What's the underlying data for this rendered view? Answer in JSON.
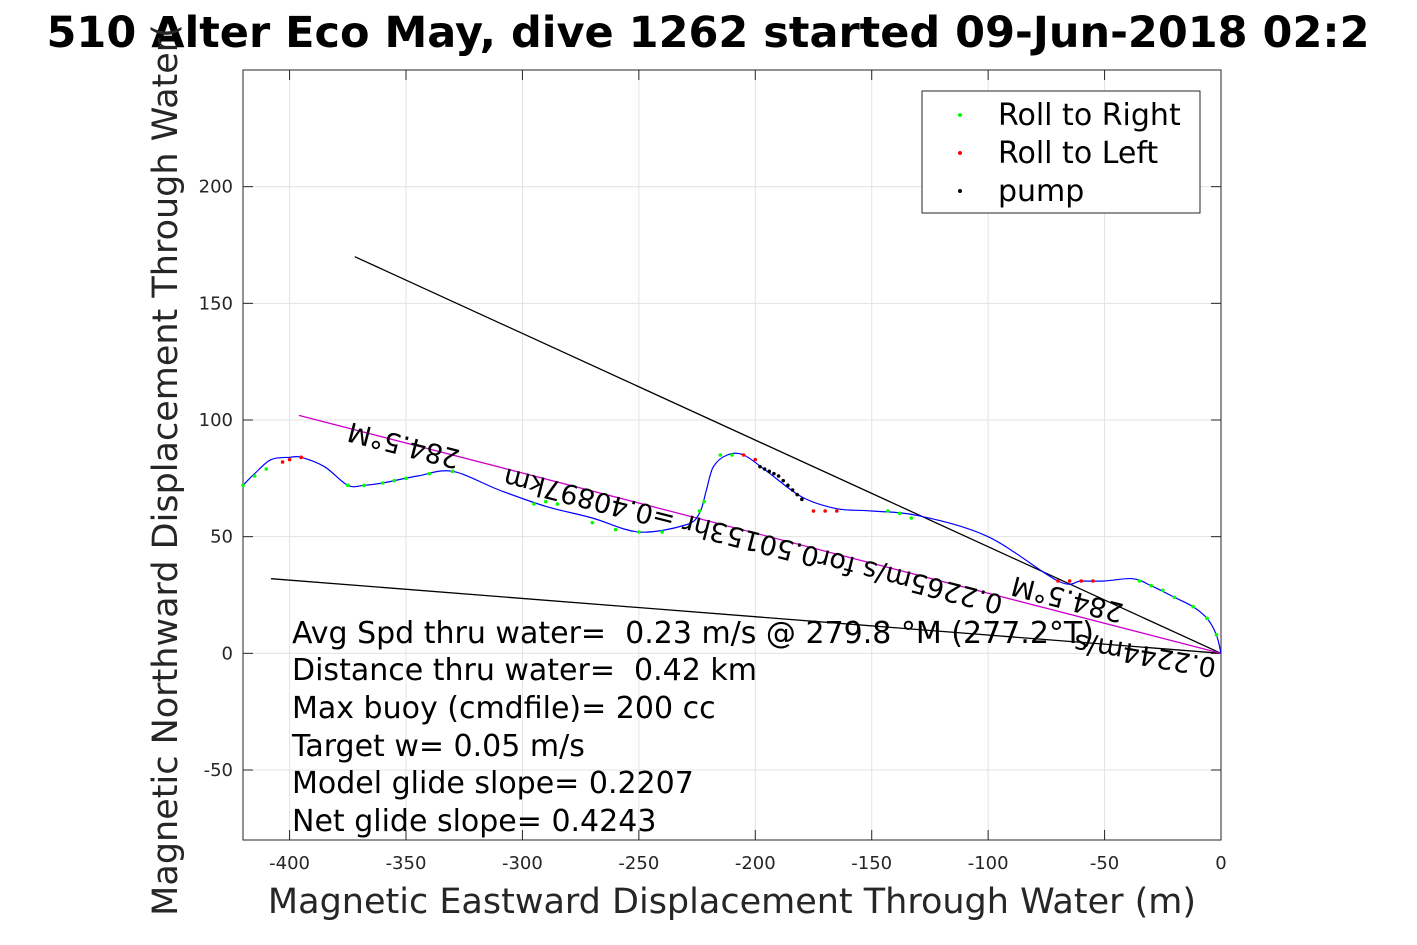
{
  "chart_data": {
    "type": "line",
    "title": "510 Alter Eco May, dive 1262 started 09-Jun-2018 02:2",
    "xlabel": "Magnetic Eastward Displacement Through Water (m)",
    "ylabel": "Magnetic Northward Displacement Through Water(",
    "xlim": [
      -420,
      0
    ],
    "ylim": [
      -80,
      250
    ],
    "xticks": [
      -400,
      -350,
      -300,
      -250,
      -200,
      -150,
      -100,
      -50,
      0
    ],
    "yticks": [
      -50,
      0,
      50,
      100,
      150,
      200
    ],
    "xtick_labels": [
      "-400",
      "-350",
      "-300",
      "-250",
      "-200",
      "-150",
      "-100",
      "-50",
      "0"
    ],
    "ytick_labels": [
      "-50",
      "0",
      "50",
      "100",
      "150",
      "200"
    ],
    "grid": true,
    "legend": {
      "placement": "top-right",
      "entries": [
        {
          "label": "Roll to Right",
          "color": "#00ff00"
        },
        {
          "label": "Roll to Left",
          "color": "#ff0000"
        },
        {
          "label": "pump",
          "color": "#000000"
        }
      ]
    },
    "track": {
      "color": "#0000ff",
      "x": [
        0,
        -2,
        -6,
        -12,
        -20,
        -30,
        -38,
        -50,
        -60,
        -70,
        -100,
        -130,
        -150,
        -165,
        -180,
        -195,
        -205,
        -212,
        -218,
        -221,
        -224,
        -230,
        -250,
        -270,
        -290,
        -310,
        -330,
        -345,
        -360,
        -368,
        -375,
        -385,
        -395,
        -400,
        -408,
        -415,
        -420
      ],
      "y": [
        0,
        8,
        15,
        20,
        24,
        29,
        32,
        31,
        31,
        31,
        50,
        59,
        61,
        62,
        67,
        78,
        85,
        85,
        80,
        70,
        60,
        55,
        52,
        58,
        63,
        70,
        78,
        76,
        73,
        72,
        72,
        80,
        84,
        84,
        83,
        77,
        72
      ]
    },
    "roll_right_points": {
      "color": "#00ff00",
      "x": [
        -2,
        -6,
        -12,
        -20,
        -25,
        -30,
        -35,
        -133,
        -138,
        -143,
        -210,
        -215,
        -222,
        -224,
        -240,
        -250,
        -260,
        -270,
        -285,
        -290,
        -295,
        -330,
        -340,
        -350,
        -355,
        -360,
        -368,
        -375,
        -410,
        -415,
        -420
      ],
      "y": [
        8,
        15,
        20,
        24,
        27,
        29,
        31,
        58,
        60,
        61,
        85,
        85,
        65,
        61,
        52,
        52,
        53,
        56,
        64,
        65,
        64,
        78,
        77,
        75,
        74,
        73,
        72,
        72,
        79,
        76,
        72
      ]
    },
    "roll_left_points": {
      "color": "#ff0000",
      "x": [
        -55,
        -60,
        -65,
        -70,
        -165,
        -170,
        -175,
        -200,
        -205,
        -395,
        -400,
        -403
      ],
      "y": [
        31,
        31,
        31,
        31,
        61,
        61,
        61,
        83,
        85,
        84,
        83,
        82
      ]
    },
    "pump_points": {
      "color": "#000000",
      "x": [
        -180,
        -182,
        -184,
        -186,
        -188,
        -190,
        -192,
        -194,
        -196,
        -198
      ],
      "y": [
        66,
        68,
        70,
        72,
        74,
        76,
        77,
        78,
        79,
        80
      ]
    },
    "reference_lines": [
      {
        "color": "#000000",
        "x": [
          0,
          -372
        ],
        "y": [
          0,
          170
        ]
      },
      {
        "color": "#000000",
        "x": [
          0,
          -408
        ],
        "y": [
          0,
          32
        ]
      },
      {
        "color": "#cc00cc",
        "x": [
          0,
          -396
        ],
        "y": [
          0,
          102
        ]
      }
    ],
    "annotations": [
      {
        "text": "284.5°M",
        "x": -350,
        "y": 93,
        "rotation": 194.4
      },
      {
        "text": "0.2265m/s for0.50153hr =0.40897km",
        "x": -200,
        "y": 52,
        "rotation": 194.4
      },
      {
        "text": "284.5°M",
        "x": -65,
        "y": 27,
        "rotation": 194.4
      },
      {
        "text": "0.2244m/s",
        "x": -32,
        "y": 3,
        "rotation": 190
      }
    ],
    "stats_text": [
      "Avg Spd thru water=  0.23 m/s @ 279.8 °M (277.2°T)",
      "Distance thru water=  0.42 km",
      "Max buoy (cmdfile)= 200 cc",
      "Target w= 0.05 m/s",
      "Model glide slope= 0.2207",
      "Net glide slope= 0.4243"
    ]
  }
}
